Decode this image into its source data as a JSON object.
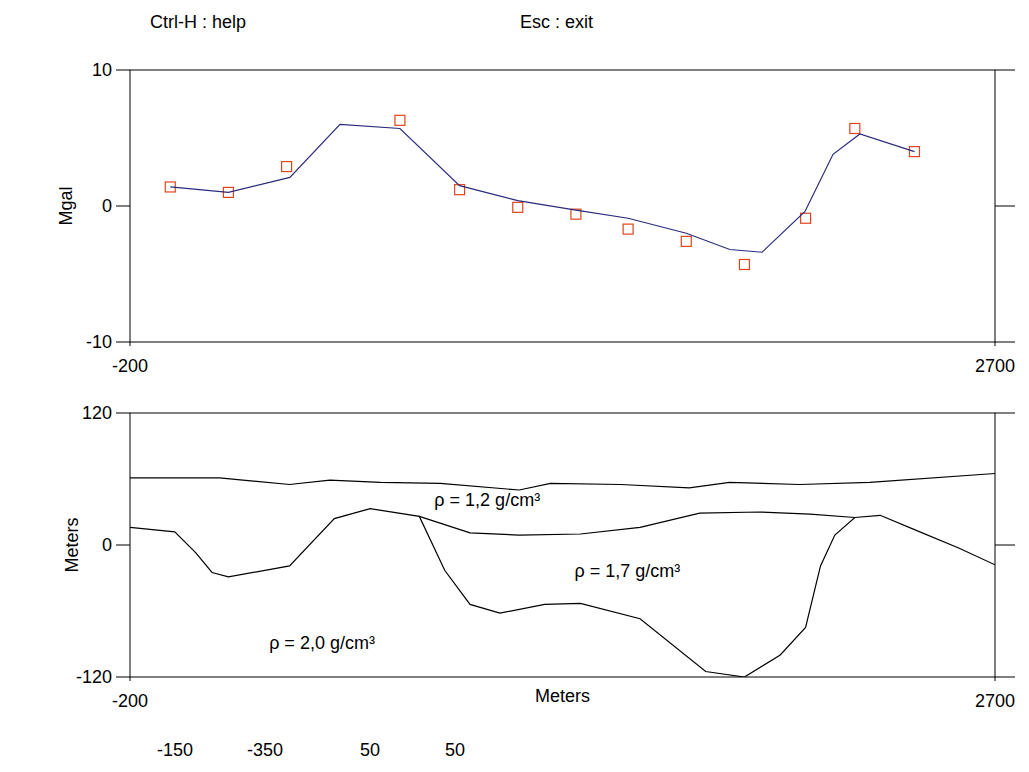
{
  "header": {
    "help": "Ctrl-H : help",
    "exit": "Esc : exit"
  },
  "chart_data": [
    {
      "type": "line",
      "ylabel": "Mgal",
      "xlim": [
        -200,
        2700
      ],
      "xticks": [
        -200,
        2700
      ],
      "ylim": [
        -10,
        10
      ],
      "yticks": [
        -10,
        0,
        10
      ],
      "series": [
        {
          "type": "scatter",
          "color": "#e0441c",
          "marker": "square",
          "x": [
            -65,
            130,
            325,
            705,
            905,
            1100,
            1295,
            1470,
            1665,
            1860,
            2065,
            2230,
            2430
          ],
          "values": [
            1.4,
            1.0,
            2.9,
            6.3,
            1.2,
            -0.1,
            -0.6,
            -1.7,
            -2.6,
            -4.3,
            -0.9,
            5.7,
            4.0
          ]
        },
        {
          "type": "line",
          "color": "#2a2a7c",
          "line_style": "solid",
          "x": [
            -65,
            130,
            336,
            504,
            705,
            905,
            1100,
            1295,
            1470,
            1665,
            1811,
            1919,
            2063,
            2157,
            2247,
            2430
          ],
          "values": [
            1.4,
            1.0,
            2.1,
            6.0,
            5.7,
            1.5,
            0.4,
            -0.3,
            -0.9,
            -2.0,
            -3.2,
            -3.4,
            -0.4,
            3.8,
            5.3,
            4.0
          ]
        }
      ]
    },
    {
      "type": "line",
      "xlabel": "Meters",
      "ylabel": "Meters",
      "xlim": [
        -200,
        2700
      ],
      "xticks": [
        -200,
        2700
      ],
      "ylim": [
        -120,
        120
      ],
      "yticks": [
        -120,
        0,
        120
      ],
      "annotations": [
        "ρ = 1,2 g/cm³",
        "ρ = 1,7 g/cm³",
        "ρ = 2,0 g/cm³"
      ],
      "series": [
        {
          "color": "#000000",
          "line_style": "solid",
          "x": [
            -200,
            100,
            335,
            470,
            640,
            840,
            1105,
            1210,
            1445,
            1675,
            1810,
            2045,
            2280,
            2700
          ],
          "values": [
            61,
            61,
            55,
            59,
            57,
            56,
            50,
            56,
            55,
            52,
            57,
            55,
            57,
            65
          ]
        },
        {
          "color": "#000000",
          "line_style": "solid",
          "x": [
            770,
            940,
            1105,
            1310,
            1510,
            1710,
            1910,
            2080,
            2230
          ],
          "values": [
            26,
            11,
            9,
            10,
            16,
            29,
            30,
            28,
            25
          ]
        },
        {
          "color": "#000000",
          "line_style": "solid",
          "x": [
            -200,
            -50,
            20,
            75,
            130,
            335,
            485,
            605,
            770,
            855,
            940,
            1040,
            1190,
            1310,
            1510,
            1730,
            1860,
            1980,
            2065,
            2115,
            2163,
            2230,
            2315,
            2430,
            2580,
            2700
          ],
          "values": [
            16,
            12,
            -7,
            -25,
            -29,
            -19,
            24,
            33,
            26,
            -23,
            -54,
            -62,
            -54,
            -53,
            -67,
            -115,
            -120,
            -100,
            -75,
            -19,
            9,
            25,
            27,
            14,
            -3,
            -18
          ]
        }
      ]
    }
  ],
  "footer": {
    "labels": [
      -150,
      -350,
      50,
      50
    ]
  }
}
